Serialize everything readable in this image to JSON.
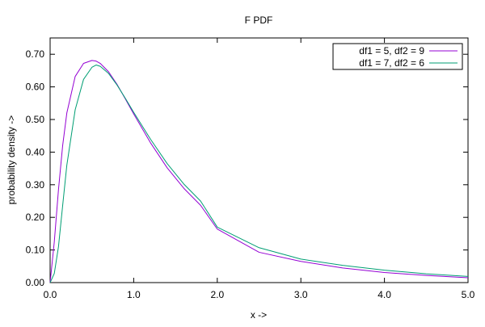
{
  "chart_data": {
    "type": "line",
    "title": "F PDF",
    "xlabel": "x ->",
    "ylabel": "probability density ->",
    "xlim": [
      0,
      5
    ],
    "ylim": [
      0,
      0.75
    ],
    "grid": false,
    "legend_position": "top-right",
    "x_ticks": [
      0,
      1,
      2,
      3,
      4,
      5
    ],
    "x_tick_labels": [
      "0.0",
      "1.0",
      "2.0",
      "3.0",
      "4.0",
      "5.0"
    ],
    "y_ticks": [
      0,
      0.1,
      0.2,
      0.3,
      0.4,
      0.5,
      0.6,
      0.7
    ],
    "y_tick_labels": [
      "0.00",
      "0.10",
      "0.20",
      "0.30",
      "0.40",
      "0.50",
      "0.60",
      "0.70"
    ],
    "x": [
      0.0,
      0.05,
      0.1,
      0.15,
      0.2,
      0.3,
      0.4,
      0.5,
      0.55,
      0.6,
      0.7,
      0.8,
      0.9,
      1.0,
      1.2,
      1.4,
      1.6,
      1.8,
      2.0,
      2.5,
      3.0,
      3.5,
      4.0,
      4.5,
      5.0
    ],
    "series": [
      {
        "name": "df1 = 5, df2 = 9",
        "color": "#9400d3",
        "values": [
          0.0,
          0.125,
          0.285,
          0.42,
          0.52,
          0.632,
          0.672,
          0.681,
          0.679,
          0.672,
          0.646,
          0.608,
          0.563,
          0.517,
          0.429,
          0.352,
          0.289,
          0.237,
          0.164,
          0.093,
          0.065,
          0.045,
          0.031,
          0.022,
          0.015
        ]
      },
      {
        "name": "df1 = 7, df2 = 6",
        "color": "#009e73",
        "values": [
          0.0,
          0.028,
          0.11,
          0.236,
          0.36,
          0.53,
          0.623,
          0.66,
          0.667,
          0.663,
          0.641,
          0.606,
          0.565,
          0.522,
          0.44,
          0.365,
          0.302,
          0.25,
          0.17,
          0.107,
          0.072,
          0.053,
          0.038,
          0.027,
          0.019
        ]
      }
    ]
  }
}
